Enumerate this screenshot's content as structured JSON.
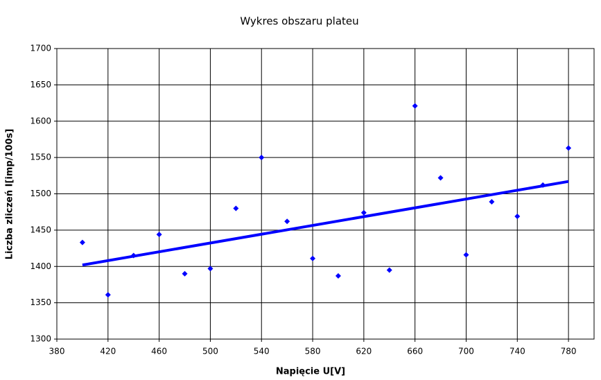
{
  "chart_data": {
    "type": "scatter",
    "title": "Wykres obszaru plateu",
    "x_label": "Napięcie U[V]",
    "y_label": "Liczba zliczeń I[imp/100s]",
    "x": [
      400,
      420,
      440,
      460,
      480,
      500,
      520,
      540,
      560,
      580,
      600,
      620,
      640,
      660,
      680,
      700,
      720,
      740,
      760,
      780
    ],
    "values": [
      1433,
      1361,
      1415,
      1444,
      1390,
      1397,
      1480,
      1550,
      1462,
      1411,
      1387,
      1474,
      1395,
      1621,
      1522,
      1416,
      1489,
      1469,
      1512,
      1563
    ],
    "color": "#0000ff",
    "trendline": {
      "x": [
        400,
        780
      ],
      "values": [
        1402,
        1517
      ],
      "color": "#0000ff"
    },
    "xlim": [
      380,
      800
    ],
    "xticks": [
      380,
      420,
      460,
      500,
      540,
      580,
      620,
      660,
      700,
      740,
      780
    ],
    "ylim": [
      1300,
      1700
    ],
    "yticks": [
      1300,
      1350,
      1400,
      1450,
      1500,
      1550,
      1600,
      1650,
      1700
    ],
    "grid": true
  }
}
